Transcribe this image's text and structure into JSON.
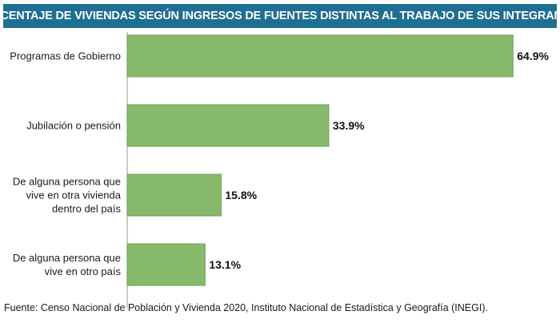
{
  "chart_data": {
    "type": "bar",
    "orientation": "horizontal",
    "title": "PORCENTAJE DE VIVIENDAS SEGÚN INGRESOS DE FUENTES DISTINTAS AL TRABAJO DE SUS INTEGRANTES",
    "categories": [
      [
        "Programas de Gobierno"
      ],
      [
        "Jubilación o pensión"
      ],
      [
        "De alguna persona que",
        "vive en otra vivienda",
        "dentro del país"
      ],
      [
        "De alguna persona que",
        "vive en otro país"
      ]
    ],
    "values": [
      64.9,
      33.9,
      15.8,
      13.1
    ],
    "value_labels": [
      "64.9%",
      "33.9%",
      "15.8%",
      "13.1%"
    ],
    "unit": "%",
    "xlim": [
      0,
      72
    ],
    "grid": false,
    "bar_color": "#86b96a",
    "bar_edge_color": "#6e9f55",
    "title_bg_color": "#1f6f93"
  },
  "source": "Fuente: Censo Nacional de Población y Vivienda 2020, Instituto Nacional de Estadística y Geografía (INEGI)."
}
